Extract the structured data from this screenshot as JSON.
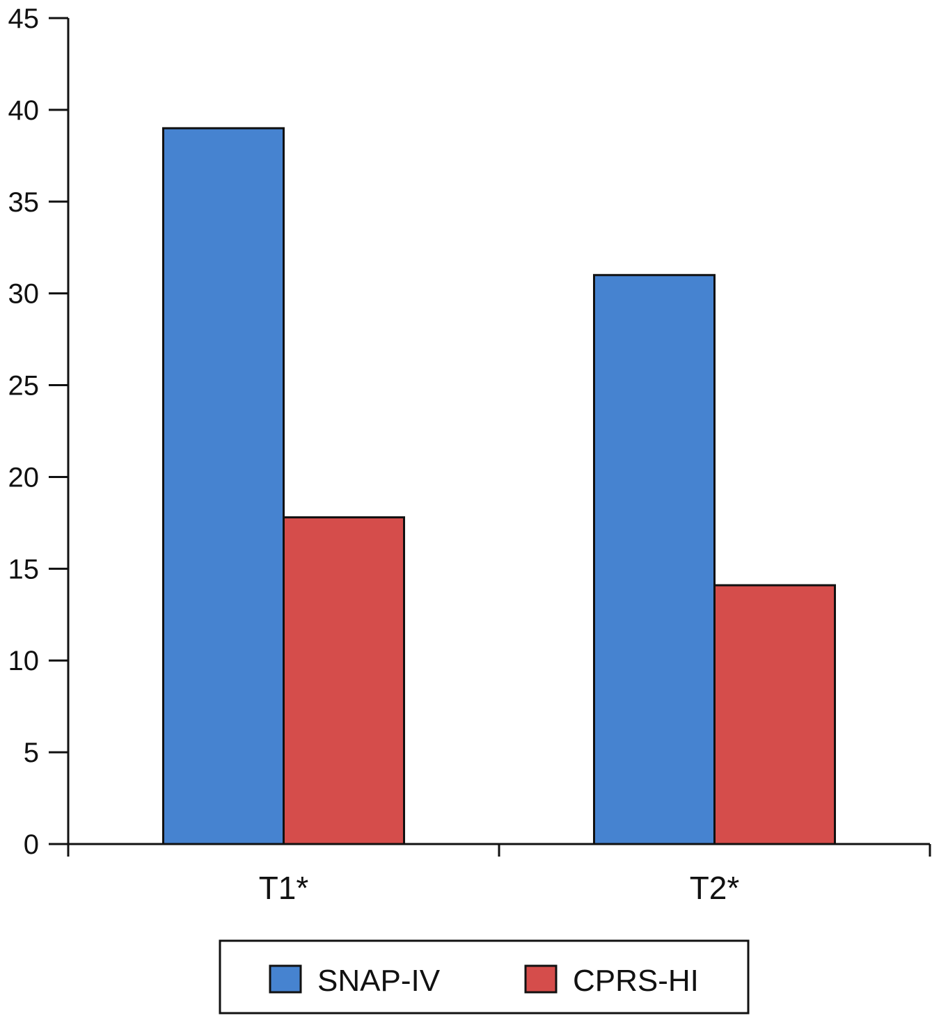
{
  "chart_data": {
    "type": "bar",
    "title": "",
    "xlabel": "",
    "ylabel": "",
    "categories": [
      "T1*",
      "T2*"
    ],
    "series": [
      {
        "name": "SNAP-IV",
        "values": [
          39,
          31
        ],
        "color": "#4683d0"
      },
      {
        "name": "CPRS-HI",
        "values": [
          17.8,
          14.1
        ],
        "color": "#d54d4b"
      }
    ],
    "ylim": [
      0,
      45
    ],
    "yticks": [
      0,
      5,
      10,
      15,
      20,
      25,
      30,
      35,
      40,
      45
    ],
    "grid": false,
    "legend": "bottom"
  }
}
